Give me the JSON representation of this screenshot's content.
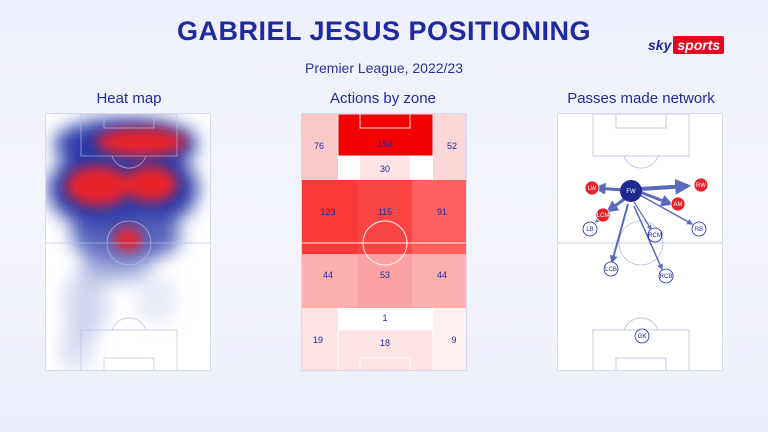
{
  "header": {
    "title": "GABRIEL JESUS POSITIONING",
    "subtitle": "Premier League, 2022/23",
    "brand_sky": "sky",
    "brand_sports": "sports"
  },
  "panels": {
    "heatmap_title": "Heat map",
    "zones_title": "Actions by zone",
    "network_title": "Passes made network"
  },
  "zones": [
    {
      "label": "76"
    },
    {
      "label": "154"
    },
    {
      "label": "52"
    },
    {
      "label": "30"
    },
    {
      "label": "123"
    },
    {
      "label": "115"
    },
    {
      "label": "91"
    },
    {
      "label": "44"
    },
    {
      "label": "53"
    },
    {
      "label": "44"
    },
    {
      "label": "1"
    },
    {
      "label": "19"
    },
    {
      "label": "18"
    },
    {
      "label": "9"
    }
  ],
  "network": {
    "nodes": [
      "LW",
      "FW",
      "RW",
      "AM",
      "LCM",
      "LB",
      "RCM",
      "RB",
      "LCB",
      "RCB",
      "GK"
    ]
  },
  "colors": {
    "navy": "#1f2aa0",
    "red": "#e8202b",
    "zone_max": "#ff0000"
  }
}
